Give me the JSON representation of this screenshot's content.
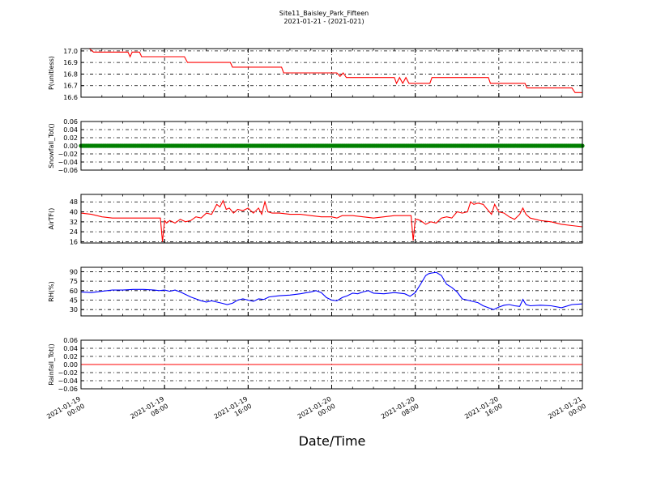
{
  "figure": {
    "title": "Site11_Baisley_Park_Fifteen",
    "subtitle": "2021-01-21 - (2021-021)",
    "xlabel": "Date/Time"
  },
  "chart_data": [
    {
      "type": "line",
      "name": "pressure-panel",
      "ylabel": "P(unitless)",
      "ylim": [
        16.6,
        17.02
      ],
      "yticks": [
        16.6,
        16.7,
        16.8,
        16.9,
        17.0
      ],
      "ytick_labels": [
        "16.6",
        "16.7",
        "16.8",
        "16.9",
        "17.0"
      ],
      "xlim": [
        0,
        48
      ],
      "grid": true,
      "color": "#ff0000",
      "series": [
        {
          "x": [
            0,
            0.8,
            1.2,
            1.6,
            4.5,
            4.7,
            4.9,
            5.6,
            5.8,
            9.9,
            10.2,
            14.3,
            14.5,
            19.2,
            19.4,
            24.5,
            24.8,
            25.1,
            25.4,
            30.0,
            30.2,
            30.5,
            30.8,
            31.1,
            31.4,
            31.7,
            32.0,
            33.4,
            33.6,
            39.0,
            39.2,
            42.5,
            42.7,
            47.0,
            47.3,
            48
          ],
          "y": [
            17.02,
            17.02,
            16.99,
            16.99,
            16.99,
            16.95,
            16.99,
            16.99,
            16.95,
            16.95,
            16.9,
            16.9,
            16.86,
            16.86,
            16.81,
            16.81,
            16.78,
            16.81,
            16.77,
            16.77,
            16.72,
            16.77,
            16.72,
            16.77,
            16.72,
            16.72,
            16.72,
            16.72,
            16.77,
            16.77,
            16.72,
            16.72,
            16.68,
            16.68,
            16.64,
            16.64
          ]
        }
      ]
    },
    {
      "type": "scatter",
      "name": "snowfall-panel",
      "ylabel": "Snowfall_Tot()",
      "ylim": [
        -0.06,
        0.06
      ],
      "yticks": [
        -0.06,
        -0.04,
        -0.02,
        0.0,
        0.02,
        0.04,
        0.06
      ],
      "ytick_labels": [
        "−0.06",
        "−0.04",
        "−0.02",
        "0.00",
        "0.02",
        "0.04",
        "0.06"
      ],
      "xlim": [
        0,
        48
      ],
      "grid": true,
      "color": "#008000",
      "series": [
        {
          "x_start": 0,
          "x_end": 48,
          "value": 0.0
        }
      ]
    },
    {
      "type": "line",
      "name": "airtemp-panel",
      "ylabel": "AirTF()",
      "ylim": [
        15,
        54
      ],
      "yticks": [
        16,
        24,
        32,
        40,
        48
      ],
      "ytick_labels": [
        "16",
        "24",
        "32",
        "40",
        "48"
      ],
      "xlim": [
        0,
        48
      ],
      "grid": true,
      "color": "#ff0000",
      "series": [
        {
          "x": [
            0,
            1,
            2,
            3,
            4,
            5,
            6,
            7,
            7.6,
            7.8,
            8.0,
            8.2,
            8.5,
            9,
            9.5,
            10,
            10.5,
            11,
            11.5,
            12,
            12.5,
            13,
            13.3,
            13.6,
            13.9,
            14.2,
            14.6,
            15,
            15.5,
            16,
            16.5,
            17,
            17.3,
            17.6,
            17.9,
            18.3,
            19,
            20,
            21,
            22,
            23,
            24,
            24.5,
            25,
            25.5,
            26,
            27,
            28,
            29,
            30,
            31,
            31.6,
            31.8,
            32.0,
            32.2,
            32.5,
            33,
            33.5,
            34,
            34.5,
            35,
            35.5,
            36,
            36.5,
            37,
            37.3,
            37.6,
            38,
            38.5,
            39,
            39.3,
            39.6,
            40,
            40.5,
            41,
            41.5,
            42,
            42.3,
            42.6,
            43,
            44,
            45,
            46,
            47,
            48
          ],
          "y": [
            39,
            38,
            36,
            35,
            35,
            35,
            35,
            35,
            35,
            16,
            33,
            31,
            33,
            31,
            34,
            32,
            33,
            36,
            35,
            39,
            38,
            46,
            44,
            49,
            42,
            43,
            39,
            42,
            41,
            43,
            39,
            43,
            38,
            48,
            40,
            39,
            39,
            38,
            38,
            37,
            36,
            36,
            35,
            37,
            37,
            37,
            36,
            35,
            36,
            37,
            37,
            37,
            17,
            34,
            34,
            33,
            30,
            32,
            31,
            35,
            36,
            35,
            40,
            39,
            40,
            48,
            46,
            47,
            46,
            41,
            38,
            46,
            40,
            39,
            36,
            34,
            38,
            43,
            38,
            35,
            33,
            32,
            30,
            29,
            28
          ]
        }
      ]
    },
    {
      "type": "line",
      "name": "humidity-panel",
      "ylabel": "RH(%)",
      "ylim": [
        20,
        97
      ],
      "yticks": [
        30,
        45,
        60,
        75,
        90
      ],
      "ytick_labels": [
        "30",
        "45",
        "60",
        "75",
        "90"
      ],
      "xlim": [
        0,
        48
      ],
      "grid": true,
      "color": "#0000ff",
      "series": [
        {
          "x": [
            0,
            1,
            2,
            3,
            4,
            5,
            6,
            7,
            7.5,
            8,
            8.5,
            9,
            9.5,
            10,
            10.5,
            11,
            11.5,
            12,
            12.5,
            13,
            13.5,
            14,
            14.5,
            15,
            15.5,
            16,
            16.5,
            17,
            17.5,
            18,
            19,
            20,
            21,
            22,
            22.5,
            23,
            23.5,
            24,
            24.5,
            25,
            25.5,
            26,
            26.5,
            27,
            27.5,
            28,
            29,
            30,
            31,
            31.5,
            32,
            32.5,
            33,
            33.3,
            33.6,
            34,
            34.5,
            35,
            35.5,
            36,
            36.5,
            37,
            37.5,
            38,
            38.5,
            39,
            39.5,
            40,
            40.5,
            41,
            41.5,
            42,
            42.3,
            42.6,
            43,
            44,
            45,
            46,
            47,
            48
          ],
          "y": [
            58,
            57,
            59,
            61,
            61,
            62,
            62,
            61,
            60,
            61,
            59,
            61,
            58,
            54,
            50,
            47,
            44,
            42,
            44,
            42,
            40,
            38,
            40,
            45,
            47,
            45,
            43,
            47,
            46,
            50,
            52,
            53,
            55,
            58,
            60,
            57,
            49,
            45,
            44,
            49,
            52,
            56,
            55,
            58,
            60,
            56,
            55,
            57,
            55,
            51,
            57,
            70,
            84,
            87,
            88,
            89,
            84,
            70,
            65,
            58,
            47,
            45,
            43,
            41,
            36,
            33,
            30,
            34,
            37,
            38,
            36,
            35,
            46,
            38,
            36,
            37,
            36,
            33,
            38,
            39
          ]
        }
      ]
    },
    {
      "type": "line",
      "name": "rainfall-panel",
      "ylabel": "Rainfall_Tot()",
      "ylim": [
        -0.06,
        0.06
      ],
      "yticks": [
        -0.06,
        -0.04,
        -0.02,
        0.0,
        0.02,
        0.04,
        0.06
      ],
      "ytick_labels": [
        "−0.06",
        "−0.04",
        "−0.02",
        "0.00",
        "0.02",
        "0.04",
        "0.06"
      ],
      "xlim": [
        0,
        48
      ],
      "grid": true,
      "color": "#ff0000",
      "series": [
        {
          "x": [
            0,
            48
          ],
          "y": [
            0.0,
            0.0
          ]
        }
      ]
    }
  ],
  "x_axis": {
    "ticks": [
      0,
      8,
      16,
      24,
      32,
      40,
      48
    ],
    "tick_labels": [
      [
        "2021-01-19",
        "00:00"
      ],
      [
        "2021-01-19",
        "08:00"
      ],
      [
        "2021-01-19",
        "16:00"
      ],
      [
        "2021-01-20",
        "00:00"
      ],
      [
        "2021-01-20",
        "08:00"
      ],
      [
        "2021-01-20",
        "16:00"
      ],
      [
        "2021-01-21",
        "00:00"
      ]
    ],
    "minor_step": 2
  }
}
